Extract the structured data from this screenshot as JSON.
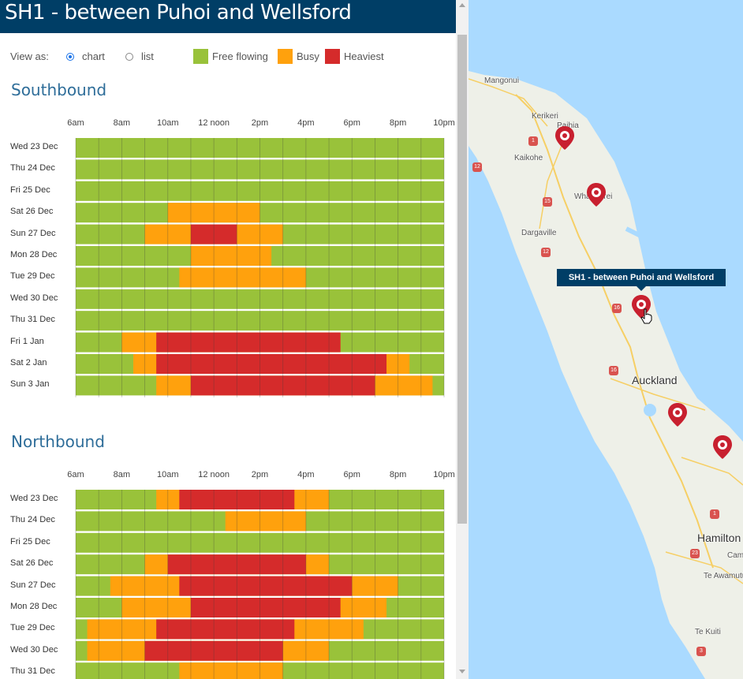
{
  "panel": {
    "title": "SH1 - between Puhoi and Wellsford"
  },
  "controls": {
    "view_as_label": "View as:",
    "options": [
      "chart",
      "list"
    ],
    "selected": "chart"
  },
  "legend": [
    {
      "label": "Free flowing",
      "color": "#99c23a"
    },
    {
      "label": "Busy",
      "color": "#ffa10d"
    },
    {
      "label": "Heaviest",
      "color": "#d52b2b"
    }
  ],
  "hours": [
    "6am",
    "8am",
    "10am",
    "12 noon",
    "2pm",
    "4pm",
    "6pm",
    "8pm",
    "10pm"
  ],
  "days": [
    "Wed 23 Dec",
    "Thu 24 Dec",
    "Fri 25 Dec",
    "Sat 26 Dec",
    "Sun 27 Dec",
    "Mon 28 Dec",
    "Tue 29 Dec",
    "Wed 30 Dec",
    "Thu 31 Dec",
    "Fri 1 Jan",
    "Sat 2 Jan",
    "Sun 3 Jan"
  ],
  "sections": [
    {
      "title": "Southbound"
    },
    {
      "title": "Northbound"
    }
  ],
  "chart_data": [
    {
      "type": "heatmap",
      "title": "Southbound",
      "x_range_hours": [
        6,
        22
      ],
      "categories": [
        "Wed 23 Dec",
        "Thu 24 Dec",
        "Fri 25 Dec",
        "Sat 26 Dec",
        "Sun 27 Dec",
        "Mon 28 Dec",
        "Tue 29 Dec",
        "Wed 30 Dec",
        "Thu 31 Dec",
        "Fri 1 Jan",
        "Sat 2 Jan",
        "Sun 3 Jan"
      ],
      "rows": [
        {
          "busy": [],
          "heaviest": []
        },
        {
          "busy": [],
          "heaviest": []
        },
        {
          "busy": [],
          "heaviest": []
        },
        {
          "busy": [
            [
              10,
              14
            ]
          ],
          "heaviest": []
        },
        {
          "busy": [
            [
              9,
              15
            ]
          ],
          "heaviest": [
            [
              11,
              13
            ]
          ]
        },
        {
          "busy": [
            [
              11,
              14.5
            ]
          ],
          "heaviest": []
        },
        {
          "busy": [
            [
              10.5,
              16
            ]
          ],
          "heaviest": []
        },
        {
          "busy": [],
          "heaviest": []
        },
        {
          "busy": [],
          "heaviest": []
        },
        {
          "busy": [
            [
              8,
              17.5
            ]
          ],
          "heaviest": [
            [
              9.5,
              17.5
            ]
          ]
        },
        {
          "busy": [
            [
              8.5,
              20.5
            ]
          ],
          "heaviest": [
            [
              9.5,
              19.5
            ]
          ]
        },
        {
          "busy": [
            [
              9.5,
              21.5
            ]
          ],
          "heaviest": [
            [
              11,
              19
            ]
          ]
        }
      ]
    },
    {
      "type": "heatmap",
      "title": "Northbound",
      "x_range_hours": [
        6,
        22
      ],
      "categories": [
        "Wed 23 Dec",
        "Thu 24 Dec",
        "Fri 25 Dec",
        "Sat 26 Dec",
        "Sun 27 Dec",
        "Mon 28 Dec",
        "Tue 29 Dec",
        "Wed 30 Dec",
        "Thu 31 Dec"
      ],
      "rows": [
        {
          "busy": [
            [
              9.5,
              17
            ]
          ],
          "heaviest": [
            [
              10.5,
              15.5
            ]
          ]
        },
        {
          "busy": [
            [
              12.5,
              16
            ]
          ],
          "heaviest": []
        },
        {
          "busy": [],
          "heaviest": []
        },
        {
          "busy": [
            [
              9,
              17
            ]
          ],
          "heaviest": [
            [
              10,
              16
            ]
          ]
        },
        {
          "busy": [
            [
              7.5,
              20
            ]
          ],
          "heaviest": [
            [
              10.5,
              18
            ]
          ]
        },
        {
          "busy": [
            [
              8,
              19.5
            ]
          ],
          "heaviest": [
            [
              11,
              17.5
            ]
          ]
        },
        {
          "busy": [
            [
              6.5,
              18.5
            ]
          ],
          "heaviest": [
            [
              9.5,
              15.5
            ]
          ]
        },
        {
          "busy": [
            [
              6.5,
              17
            ]
          ],
          "heaviest": [
            [
              9,
              15
            ]
          ]
        },
        {
          "busy": [
            [
              10.5,
              15
            ]
          ],
          "heaviest": []
        }
      ]
    }
  ],
  "map": {
    "places": [
      "Mangonui",
      "Kerikeri",
      "Paihia",
      "Kaikohe",
      "Whangarei",
      "Dargaville",
      "Auckland",
      "Hamilton",
      "Te Awamutu",
      "Te Kuiti",
      "Cam"
    ],
    "route_numbers": [
      "1",
      "12",
      "15",
      "12",
      "16",
      "16",
      "1",
      "23",
      "3"
    ],
    "tooltip": "SH1 - between Puhoi and Wellsford",
    "water_color": "#aadaff",
    "land_color": "#eef0e8"
  }
}
